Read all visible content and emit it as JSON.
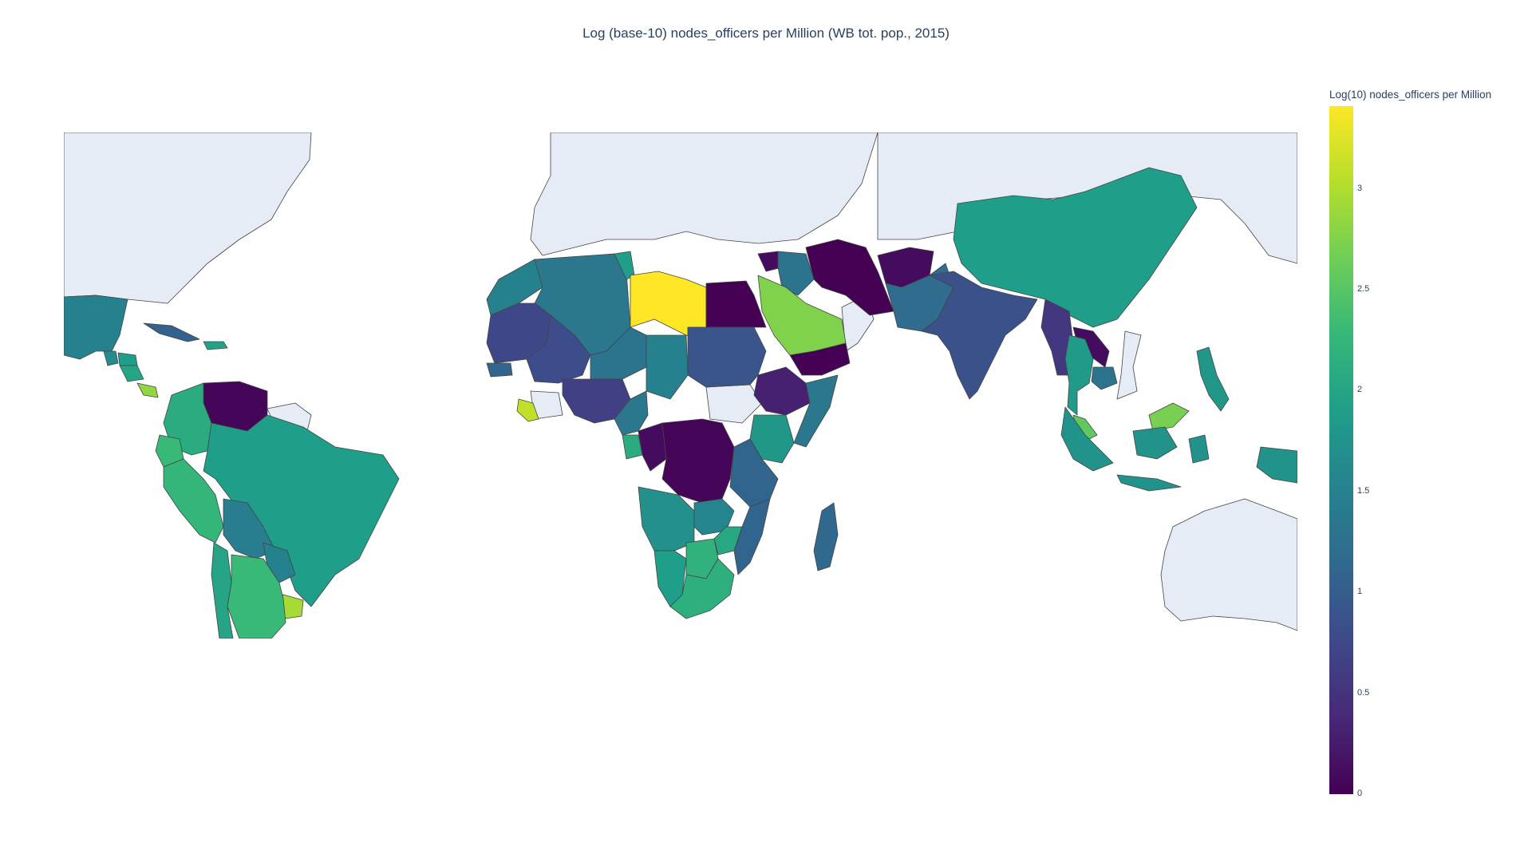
{
  "title": "Log (base-10) nodes_officers per Million (WB tot. pop., 2015)",
  "colorbar": {
    "title": "Log(10) nodes_officers per Million",
    "ticks": [
      "0",
      "0.5",
      "1",
      "1.5",
      "2",
      "2.5",
      "3"
    ],
    "tick_values": [
      0,
      0.5,
      1,
      1.5,
      2,
      2.5,
      3
    ],
    "range": [
      0,
      3.41
    ],
    "colorscale": "Viridis"
  },
  "map": {
    "land_color": "#e5ecf6",
    "nodata_color": "#e5ecf6",
    "border_color": "#444444"
  },
  "regions": [
    {
      "name": "Libya",
      "value": 3.41
    },
    {
      "name": "Uruguay",
      "value": 2.95
    },
    {
      "name": "Liberia",
      "value": 3.1
    },
    {
      "name": "Saudi Arabia",
      "value": 2.75
    },
    {
      "name": "Panama",
      "value": 2.85
    },
    {
      "name": "Malaysia",
      "value": 2.55
    },
    {
      "name": "Brunei",
      "value": 2.7
    },
    {
      "name": "Argentina",
      "value": 2.3
    },
    {
      "name": "Chile",
      "value": 2.0
    },
    {
      "name": "Peru",
      "value": 2.25
    },
    {
      "name": "Colombia",
      "value": 2.1
    },
    {
      "name": "Ecuador",
      "value": 2.3
    },
    {
      "name": "Brazil",
      "value": 1.9
    },
    {
      "name": "Bolivia",
      "value": 1.45
    },
    {
      "name": "Paraguay",
      "value": 1.5
    },
    {
      "name": "Venezuela",
      "value": 0.05
    },
    {
      "name": "Mexico",
      "value": 1.5
    },
    {
      "name": "Guatemala",
      "value": 1.65
    },
    {
      "name": "Honduras",
      "value": 1.9
    },
    {
      "name": "Nicaragua",
      "value": 2.0
    },
    {
      "name": "Cuba",
      "value": 1.05
    },
    {
      "name": "Dominican Republic",
      "value": 1.95
    },
    {
      "name": "China",
      "value": 1.9
    },
    {
      "name": "India",
      "value": 0.85
    },
    {
      "name": "Pakistan",
      "value": 1.2
    },
    {
      "name": "Afghanistan",
      "value": 0.1
    },
    {
      "name": "Iran",
      "value": 0.0
    },
    {
      "name": "Egypt",
      "value": 0.0
    },
    {
      "name": "Yemen",
      "value": 0.0
    },
    {
      "name": "Syria",
      "value": 0.1
    },
    {
      "name": "Iraq",
      "value": 1.3
    },
    {
      "name": "Myanmar",
      "value": 0.55
    },
    {
      "name": "Thailand",
      "value": 1.85
    },
    {
      "name": "Laos",
      "value": 0.1
    },
    {
      "name": "Cambodia",
      "value": 1.3
    },
    {
      "name": "Indonesia",
      "value": 1.75
    },
    {
      "name": "Philippines",
      "value": 1.8
    },
    {
      "name": "Algeria",
      "value": 1.35
    },
    {
      "name": "Mauritania",
      "value": 0.75
    },
    {
      "name": "Mali",
      "value": 0.8
    },
    {
      "name": "Niger",
      "value": 1.3
    },
    {
      "name": "Chad",
      "value": 1.5
    },
    {
      "name": "Sudan",
      "value": 0.9
    },
    {
      "name": "Nigeria",
      "value": 0.65
    },
    {
      "name": "Cameroon",
      "value": 1.35
    },
    {
      "name": "Ethiopia",
      "value": 0.3
    },
    {
      "name": "Somalia",
      "value": 1.35
    },
    {
      "name": "Kenya",
      "value": 1.8
    },
    {
      "name": "DR Congo",
      "value": 0.05
    },
    {
      "name": "Congo",
      "value": 0.1
    },
    {
      "name": "Gabon",
      "value": 2.1
    },
    {
      "name": "Angola",
      "value": 1.7
    },
    {
      "name": "Zambia",
      "value": 1.55
    },
    {
      "name": "Tanzania",
      "value": 1.1
    },
    {
      "name": "Mozambique",
      "value": 1.1
    },
    {
      "name": "Madagascar",
      "value": 1.15
    },
    {
      "name": "Namibia",
      "value": 1.9
    },
    {
      "name": "Botswana",
      "value": 2.2
    },
    {
      "name": "Zimbabwe",
      "value": 2.05
    },
    {
      "name": "South Africa",
      "value": 2.15
    },
    {
      "name": "Morocco",
      "value": 1.5
    },
    {
      "name": "Tunisia",
      "value": 1.9
    },
    {
      "name": "Senegal",
      "value": 1.1
    }
  ]
}
